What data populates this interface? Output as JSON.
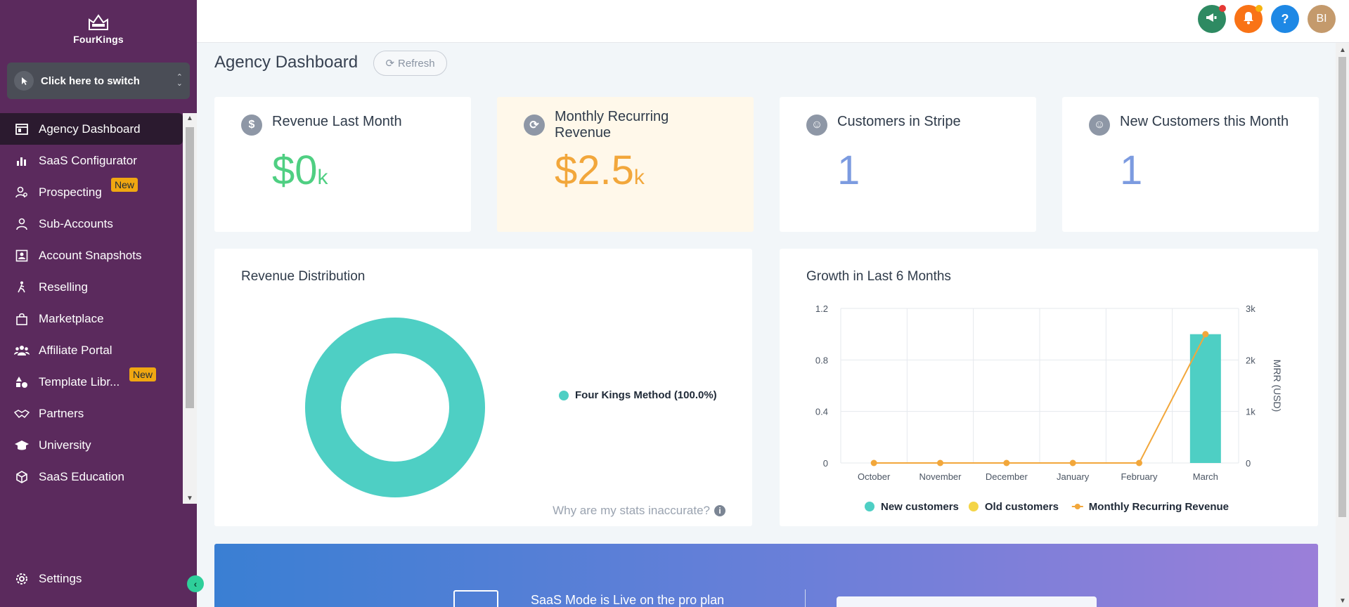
{
  "brand": {
    "name": "FourKings"
  },
  "switcher": {
    "label": "Click here to switch"
  },
  "nav": {
    "items": [
      {
        "label": "Agency Dashboard",
        "icon": "dashboard-icon",
        "active": true
      },
      {
        "label": "SaaS Configurator",
        "icon": "bar-chart-icon"
      },
      {
        "label": "Prospecting",
        "icon": "user-search-icon",
        "badge": "New"
      },
      {
        "label": "Sub-Accounts",
        "icon": "user-icon"
      },
      {
        "label": "Account Snapshots",
        "icon": "snapshot-icon"
      },
      {
        "label": "Reselling",
        "icon": "person-walk-icon"
      },
      {
        "label": "Marketplace",
        "icon": "bag-icon"
      },
      {
        "label": "Affiliate Portal",
        "icon": "users-icon"
      },
      {
        "label": "Template Libr...",
        "icon": "shapes-icon",
        "badge": "New"
      },
      {
        "label": "Partners",
        "icon": "handshake-icon"
      },
      {
        "label": "University",
        "icon": "graduation-cap-icon"
      },
      {
        "label": "SaaS Education",
        "icon": "cube-icon"
      }
    ],
    "settings_label": "Settings"
  },
  "topbar": {
    "avatar_initials": "BI",
    "help_label": "?"
  },
  "page": {
    "title": "Agency Dashboard",
    "refresh_label": "Refresh"
  },
  "stats": [
    {
      "label": "Revenue Last Month",
      "value": "$0",
      "unit": "k",
      "color": "#4fcf82",
      "icon": "dollar-icon",
      "highlight": false
    },
    {
      "label": "Monthly Recurring Revenue",
      "value": "$2.5",
      "unit": "k",
      "color": "#f2a73b",
      "icon": "recycle-icon",
      "highlight": true
    },
    {
      "label": "Customers in Stripe",
      "value": "1",
      "unit": "",
      "color": "#7c9be0",
      "icon": "user-badge-icon",
      "highlight": false
    },
    {
      "label": "New Customers this Month",
      "value": "1",
      "unit": "",
      "color": "#7c9be0",
      "icon": "user-plus-icon",
      "highlight": false
    }
  ],
  "revenue_distribution": {
    "title": "Revenue Distribution",
    "note": "Why are my stats inaccurate?"
  },
  "growth": {
    "title": "Growth in Last 6 Months"
  },
  "banner": {
    "text": "SaaS Mode is Live on the pro plan"
  },
  "chart_data": [
    {
      "type": "pie",
      "title": "Revenue Distribution",
      "donut": true,
      "slices": [
        {
          "label": "Four Kings Method (100.0%)",
          "value": 100,
          "color": "#4ecfc4"
        }
      ]
    },
    {
      "type": "bar",
      "title": "Growth in Last 6 Months",
      "categories": [
        "October",
        "November",
        "December",
        "January",
        "February",
        "March"
      ],
      "ylim": [
        0,
        1.2
      ],
      "yticks": [
        "0",
        "0.4",
        "0.8",
        "1.2"
      ],
      "y2lim": [
        0,
        3000
      ],
      "y2ticks": [
        "0",
        "1k",
        "2k",
        "3k"
      ],
      "y2label": "MRR (USD)",
      "grid": true,
      "legend_position": "bottom",
      "series": [
        {
          "name": "New customers",
          "kind": "bar",
          "color": "#4ecfc4",
          "values": [
            0,
            0,
            0,
            0,
            0,
            1
          ]
        },
        {
          "name": "Old customers",
          "kind": "bar",
          "color": "#f4d547",
          "values": [
            0,
            0,
            0,
            0,
            0,
            0
          ]
        },
        {
          "name": "Monthly Recurring Revenue",
          "kind": "line",
          "axis": "right",
          "color": "#f2a73b",
          "values": [
            0,
            0,
            0,
            0,
            0,
            2500
          ]
        }
      ]
    }
  ]
}
